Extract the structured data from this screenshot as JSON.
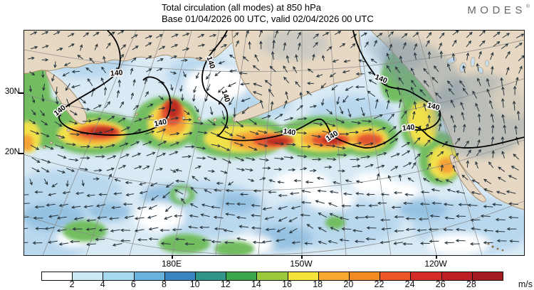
{
  "header": {
    "title_line1": "Total circulation (all modes) at 850 hPa",
    "title_line2": "Base 01/04/2026 00 UTC, valid 02/04/2026 00 UTC",
    "brand": "MODES",
    "brand_mark": "®"
  },
  "map": {
    "contour_label": "140",
    "lat_labels": [
      "30N",
      "20N"
    ],
    "lon_labels": [
      "180E",
      "150W",
      "120W"
    ]
  },
  "colorbar": {
    "unit": "m/s",
    "tick_values": [
      "2",
      "4",
      "6",
      "8",
      "10",
      "12",
      "14",
      "16",
      "18",
      "20",
      "22",
      "24",
      "26",
      "28"
    ],
    "colors": [
      "#ffffff",
      "#cde9f5",
      "#a5d9ef",
      "#68b2de",
      "#3a86c3",
      "#2f958a",
      "#3aa74d",
      "#9bc93d",
      "#f4e43c",
      "#f6a92e",
      "#f28a22",
      "#ec5526",
      "#d42b24",
      "#bc2025",
      "#a31a1f"
    ]
  },
  "chart_data": {
    "type": "heatmap",
    "title": "Total circulation (all modes) at 850 hPa",
    "subtitle": "Base 01/04/2026 00 UTC, valid 02/04/2026 00 UTC",
    "field": "circulation wind speed shading with wind vectors and contour lines",
    "contour_value": 140,
    "colorbar_unit": "m/s",
    "colorbar_ticks": [
      2,
      4,
      6,
      8,
      10,
      12,
      14,
      16,
      18,
      20,
      22,
      24,
      26,
      28
    ],
    "colorbar_range": [
      0,
      30
    ],
    "x_tick_labels": [
      "180E",
      "150W",
      "120W"
    ],
    "y_tick_labels": [
      "30N",
      "20N"
    ],
    "legend_position": "bottom"
  }
}
